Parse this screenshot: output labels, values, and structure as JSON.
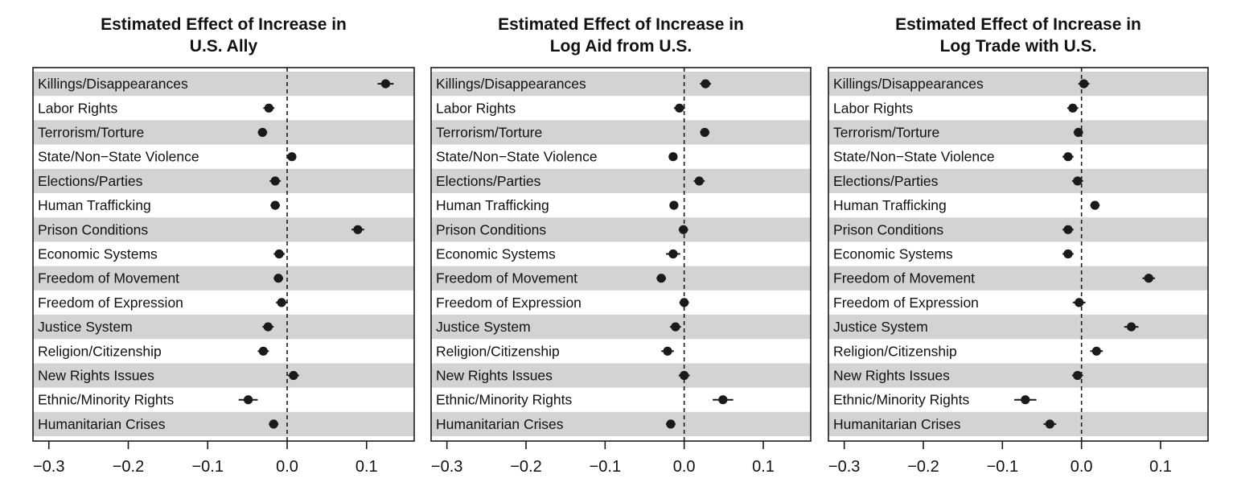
{
  "colors": {
    "band": "#d3d3d3",
    "point": "#1a1a1a",
    "frame": "#1a1a1a"
  },
  "chart_data": [
    {
      "type": "scatter",
      "title": [
        "Estimated Effect of Increase in",
        "U.S. Ally"
      ],
      "categories": [
        "Killings/Disappearances",
        "Labor Rights",
        "Terrorism/Torture",
        "State/Non−State Violence",
        "Elections/Parties",
        "Human Trafficking",
        "Prison Conditions",
        "Economic Systems",
        "Freedom of Movement",
        "Freedom of Expression",
        "Justice System",
        "Religion/Citizenship",
        "New Rights Issues",
        "Ethnic/Minority Rights",
        "Humanitarian Crises"
      ],
      "values": [
        0.124,
        -0.023,
        -0.031,
        0.006,
        -0.015,
        -0.015,
        0.089,
        -0.01,
        -0.011,
        -0.007,
        -0.024,
        -0.03,
        0.008,
        -0.049,
        -0.017
      ],
      "ci_low": [
        0.114,
        -0.03,
        -0.037,
        0.001,
        -0.022,
        -0.021,
        0.081,
        -0.017,
        -0.017,
        -0.014,
        -0.031,
        -0.037,
        0.001,
        -0.061,
        -0.023
      ],
      "ci_high": [
        0.134,
        -0.016,
        -0.025,
        0.011,
        -0.008,
        -0.009,
        0.097,
        -0.003,
        -0.005,
        0.0,
        -0.017,
        -0.023,
        0.015,
        -0.037,
        -0.011
      ],
      "xlim": [
        -0.32,
        0.16
      ],
      "xticks": [
        -0.3,
        -0.2,
        -0.1,
        0.0,
        0.1
      ],
      "xtick_labels": [
        "−0.3",
        "−0.2",
        "−0.1",
        "0.0",
        "0.1"
      ],
      "reference_line": 0.0
    },
    {
      "type": "scatter",
      "title": [
        "Estimated Effect of Increase in",
        "Log Aid from U.S."
      ],
      "categories": [
        "Killings/Disappearances",
        "Labor Rights",
        "Terrorism/Torture",
        "State/Non−State Violence",
        "Elections/Parties",
        "Human Trafficking",
        "Prison Conditions",
        "Economic Systems",
        "Freedom of Movement",
        "Freedom of Expression",
        "Justice System",
        "Religion/Citizenship",
        "New Rights Issues",
        "Ethnic/Minority Rights",
        "Humanitarian Crises"
      ],
      "values": [
        0.027,
        -0.006,
        0.026,
        -0.014,
        0.019,
        -0.013,
        -0.001,
        -0.014,
        -0.029,
        0.0,
        -0.011,
        -0.021,
        0.0,
        0.049,
        -0.017
      ],
      "ci_low": [
        0.02,
        -0.013,
        0.02,
        -0.019,
        0.012,
        -0.018,
        -0.007,
        -0.023,
        -0.035,
        -0.006,
        -0.018,
        -0.029,
        -0.007,
        0.036,
        -0.023
      ],
      "ci_high": [
        0.034,
        0.001,
        0.032,
        -0.009,
        0.026,
        -0.008,
        0.005,
        -0.005,
        -0.023,
        0.006,
        -0.004,
        -0.013,
        0.007,
        0.062,
        -0.011
      ],
      "xlim": [
        -0.32,
        0.16
      ],
      "xticks": [
        -0.3,
        -0.2,
        -0.1,
        0.0,
        0.1
      ],
      "xtick_labels": [
        "−0.3",
        "−0.2",
        "−0.1",
        "0.0",
        "0.1"
      ],
      "reference_line": 0.0
    },
    {
      "type": "scatter",
      "title": [
        "Estimated Effect of Increase in",
        "Log Trade with U.S."
      ],
      "categories": [
        "Killings/Disappearances",
        "Labor Rights",
        "Terrorism/Torture",
        "State/Non−State Violence",
        "Elections/Parties",
        "Human Trafficking",
        "Prison Conditions",
        "Economic Systems",
        "Freedom of Movement",
        "Freedom of Expression",
        "Justice System",
        "Religion/Citizenship",
        "New Rights Issues",
        "Ethnic/Minority Rights",
        "Humanitarian Crises"
      ],
      "values": [
        0.003,
        -0.011,
        -0.004,
        -0.017,
        -0.005,
        0.017,
        -0.017,
        -0.017,
        0.085,
        -0.003,
        0.063,
        0.019,
        -0.005,
        -0.071,
        -0.04
      ],
      "ci_low": [
        -0.004,
        -0.018,
        -0.01,
        -0.024,
        -0.012,
        0.011,
        -0.024,
        -0.024,
        0.077,
        -0.011,
        0.054,
        0.011,
        -0.012,
        -0.085,
        -0.048
      ],
      "ci_high": [
        0.01,
        -0.004,
        0.002,
        -0.01,
        0.002,
        0.023,
        -0.01,
        -0.01,
        0.093,
        0.005,
        0.072,
        0.027,
        0.002,
        -0.057,
        -0.032
      ],
      "xlim": [
        -0.32,
        0.16
      ],
      "xticks": [
        -0.3,
        -0.2,
        -0.1,
        0.0,
        0.1
      ],
      "xtick_labels": [
        "−0.3",
        "−0.2",
        "−0.1",
        "0.0",
        "0.1"
      ],
      "reference_line": 0.0
    }
  ]
}
